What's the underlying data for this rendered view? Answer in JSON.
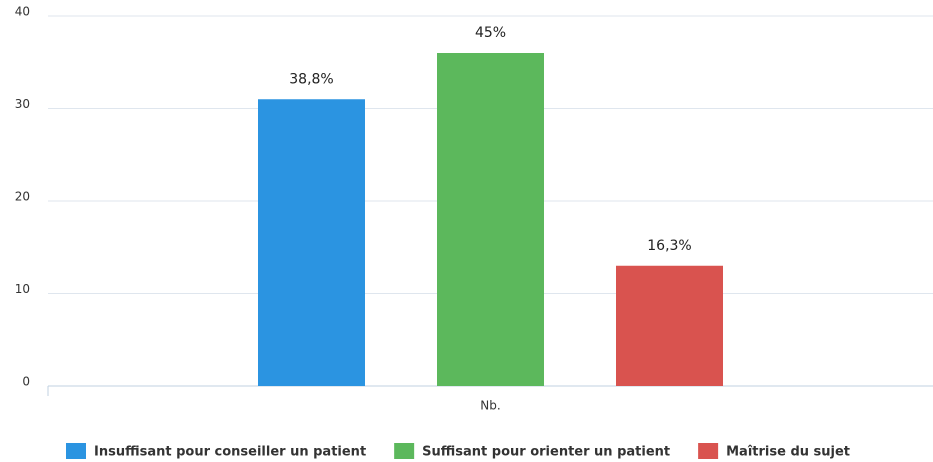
{
  "chart_data": {
    "type": "bar",
    "categories": [
      "Nb."
    ],
    "series": [
      {
        "name": "Insuffisant pour conseiller un patient",
        "color": "#2b94e1",
        "values": [
          31
        ],
        "value_labels": [
          "38,8%"
        ]
      },
      {
        "name": "Suffisant pour orienter un patient",
        "color": "#5cb85c",
        "values": [
          36
        ],
        "value_labels": [
          "45%"
        ]
      },
      {
        "name": "Maîtrise du sujet",
        "color": "#d9534f",
        "values": [
          13
        ],
        "value_labels": [
          "16,3%"
        ]
      }
    ],
    "ylim": [
      0,
      40
    ],
    "yticks": [
      0,
      10,
      20,
      30,
      40
    ],
    "grid": true,
    "legend": "bottom"
  }
}
